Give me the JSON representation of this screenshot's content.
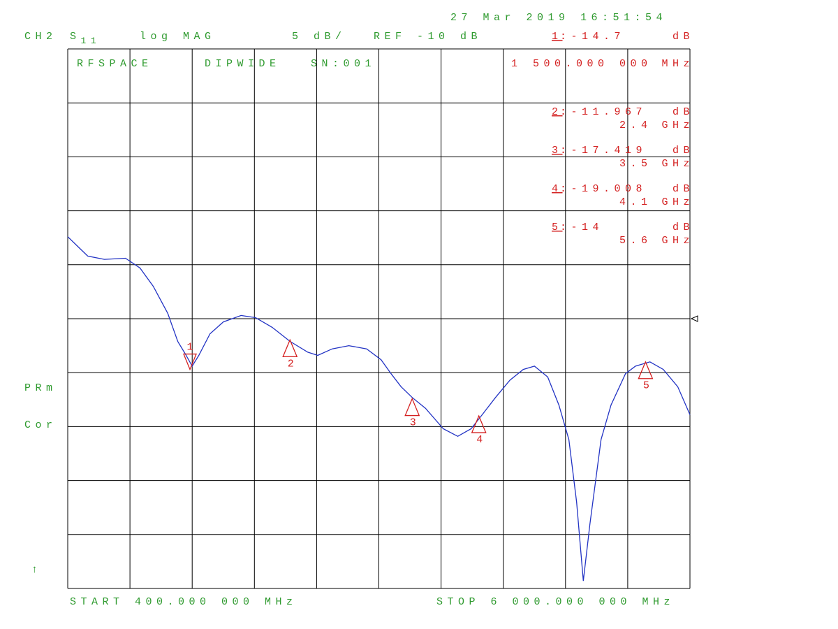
{
  "chart_data": {
    "type": "line",
    "date": "27 Mar 2019  16:51:54",
    "channel": "CH2",
    "param": "S",
    "param_sub": "11",
    "format": "log MAG",
    "scale": "5 dB/",
    "ref": "REF -10 dB",
    "ref_level": -10,
    "title": "RFSPACE",
    "subtitle": "DIPWIDE",
    "serial": "SN:001",
    "status1": "PRm",
    "status2": "Cor",
    "arrow": "↑",
    "start": "START 400.000 000 MHz",
    "stop": "STOP 6 000.000 000 MHz",
    "xlim": [
      400,
      6000
    ],
    "ylim": [
      -35,
      15
    ],
    "xticks": [
      400,
      960,
      1520,
      2080,
      2640,
      3200,
      3760,
      4320,
      4880,
      5440,
      6000
    ],
    "yticks": [
      15,
      10,
      5,
      0,
      -5,
      -10,
      -15,
      -20,
      -25,
      -30,
      -35
    ],
    "grid": true,
    "x": [
      400,
      480,
      580,
      730,
      920,
      1050,
      1170,
      1300,
      1390,
      1460,
      1520,
      1580,
      1680,
      1800,
      1960,
      2090,
      2240,
      2400,
      2560,
      2650,
      2780,
      2930,
      3090,
      3220,
      3310,
      3400,
      3500,
      3620,
      3780,
      3910,
      4030,
      4130,
      4250,
      4380,
      4500,
      4600,
      4720,
      4820,
      4910,
      4980,
      5040,
      5100,
      5200,
      5290,
      5420,
      5510,
      5640,
      5760,
      5890,
      6000
    ],
    "series": [
      {
        "name": "S11",
        "color": "#2233c4",
        "values": [
          -2.4,
          -3.2,
          -4.2,
          -4.5,
          -4.4,
          -5.3,
          -7.0,
          -9.5,
          -12.1,
          -13.3,
          -14.4,
          -13.4,
          -11.4,
          -10.3,
          -9.7,
          -9.9,
          -10.8,
          -12.1,
          -13.1,
          -13.4,
          -12.8,
          -12.5,
          -12.8,
          -13.8,
          -15.1,
          -16.3,
          -17.3,
          -18.3,
          -20.2,
          -20.9,
          -20.2,
          -18.9,
          -17.3,
          -15.7,
          -14.7,
          -14.4,
          -15.4,
          -18.0,
          -21.2,
          -27.0,
          -34.3,
          -29.0,
          -21.2,
          -18.0,
          -15.1,
          -14.4,
          -14.0,
          -14.7,
          -16.3,
          -18.9
        ]
      }
    ],
    "marker_color": "#d42020",
    "markers": [
      {
        "label": "1",
        "x": 1500,
        "x_label": "1 500.000 000",
        "x_unit": "MHz",
        "value": -14.7,
        "value_label": ":-14.7",
        "unit": "dB",
        "active": true
      },
      {
        "label": "2",
        "x": 2400,
        "x_label": "2.4",
        "x_unit": "GHz",
        "value": -11.967,
        "value_label": ":-11.967",
        "unit": "dB"
      },
      {
        "label": "3",
        "x": 3500,
        "x_label": "3.5",
        "x_unit": "GHz",
        "value": -17.419,
        "value_label": ":-17.419",
        "unit": "dB"
      },
      {
        "label": "4",
        "x": 4100,
        "x_label": "4.1",
        "x_unit": "GHz",
        "value": -19.008,
        "value_label": ":-19.008",
        "unit": "dB"
      },
      {
        "label": "5",
        "x": 5600,
        "x_label": "5.6",
        "x_unit": "GHz",
        "value": -14,
        "value_label": ":-14",
        "unit": "dB"
      }
    ]
  }
}
